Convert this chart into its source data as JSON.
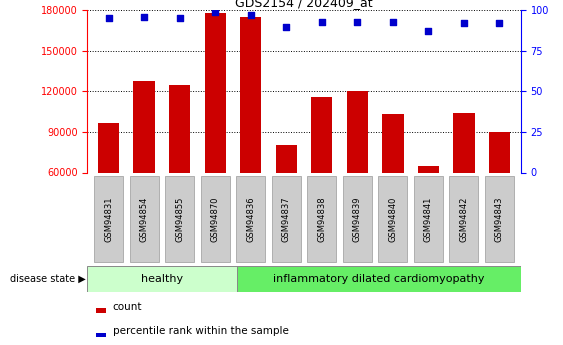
{
  "title": "GDS2154 / 202409_at",
  "samples": [
    "GSM94831",
    "GSM94854",
    "GSM94855",
    "GSM94870",
    "GSM94836",
    "GSM94837",
    "GSM94838",
    "GSM94839",
    "GSM94840",
    "GSM94841",
    "GSM94842",
    "GSM94843"
  ],
  "counts": [
    97000,
    128000,
    125000,
    178000,
    175000,
    80000,
    116000,
    120000,
    103000,
    65000,
    104000,
    90000
  ],
  "percentile": [
    95,
    96,
    95,
    99,
    97,
    90,
    93,
    93,
    93,
    87,
    92,
    92
  ],
  "ylim_left": [
    60000,
    180000
  ],
  "ylim_right": [
    0,
    100
  ],
  "yticks_left": [
    60000,
    90000,
    120000,
    150000,
    180000
  ],
  "yticks_right": [
    0,
    25,
    50,
    75,
    100
  ],
  "bar_color": "#cc0000",
  "dot_color": "#0000cc",
  "healthy_count": 4,
  "healthy_label": "healthy",
  "disease_label": "inflammatory dilated cardiomyopathy",
  "healthy_color": "#ccffcc",
  "disease_color": "#66ee66",
  "tick_bg_color": "#cccccc",
  "tick_edge_color": "#999999",
  "disease_state_label": "disease state",
  "legend_count": "count",
  "legend_pct": "percentile rank within the sample",
  "background_color": "#ffffff"
}
